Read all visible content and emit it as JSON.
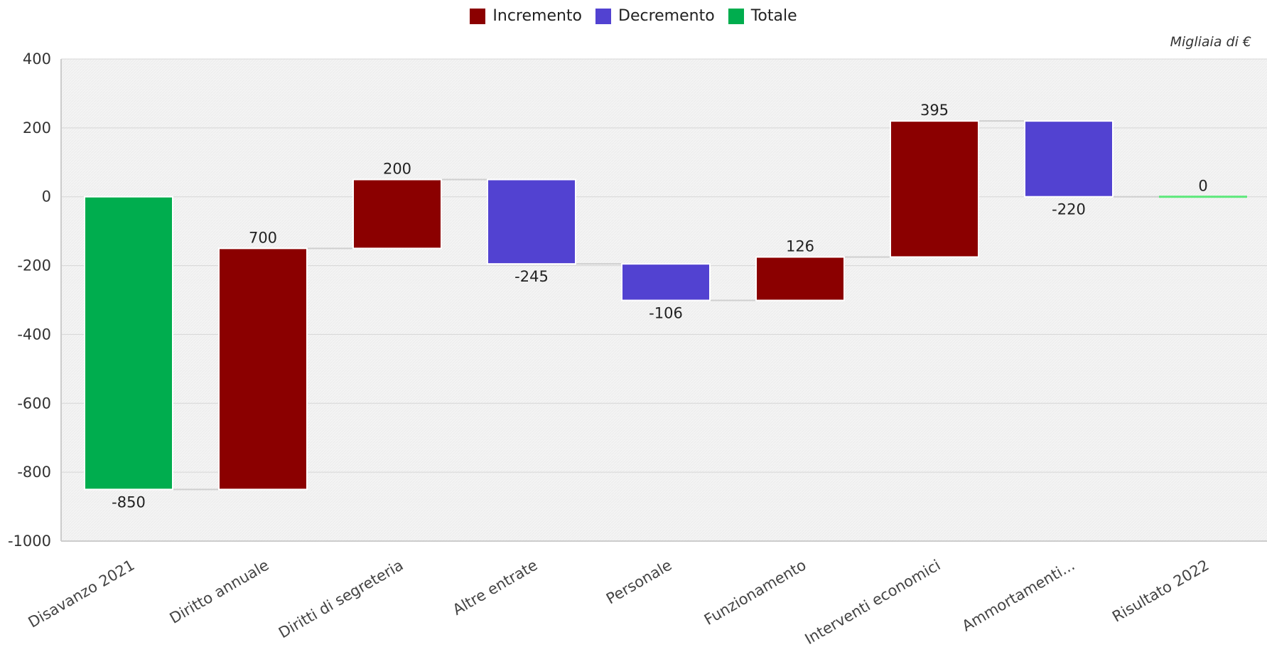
{
  "chart_data": {
    "type": "bar",
    "subtype": "waterfall",
    "title": "",
    "unit_label": "Migliaia di €",
    "legend": [
      {
        "name": "Incremento",
        "color": "#8b0000"
      },
      {
        "name": "Decremento",
        "color": "#5242d1"
      },
      {
        "name": "Totale",
        "color": "#00ad4e"
      }
    ],
    "legend_position": "top-center",
    "ylim": [
      -1000,
      400
    ],
    "yticks": [
      400,
      200,
      0,
      -200,
      -400,
      -600,
      -800,
      -1000
    ],
    "ytick_labels": [
      "400",
      "200",
      "0",
      "-200",
      "-400",
      "-600",
      "-800",
      "-1000"
    ],
    "grid": true,
    "categories": [
      "Disavanzo 2021",
      "Diritto annuale",
      "Diritti di segreteria",
      "Altre entrate",
      "Personale",
      "Funzionamento",
      "Interventi economici",
      "Ammortamenti...",
      "Risultato 2022"
    ],
    "bars": [
      {
        "category": "Disavanzo 2021",
        "kind": "total",
        "start": 0,
        "end": -850,
        "label": "-850"
      },
      {
        "category": "Diritto annuale",
        "kind": "increase",
        "start": -850,
        "end": -150,
        "label": "700"
      },
      {
        "category": "Diritti di segreteria",
        "kind": "increase",
        "start": -150,
        "end": 50,
        "label": "200"
      },
      {
        "category": "Altre entrate",
        "kind": "decrease",
        "start": 50,
        "end": -195,
        "label": "-245"
      },
      {
        "category": "Personale",
        "kind": "decrease",
        "start": -195,
        "end": -301,
        "label": "-106"
      },
      {
        "category": "Funzionamento",
        "kind": "increase",
        "start": -301,
        "end": -175,
        "label": "126"
      },
      {
        "category": "Interventi economici",
        "kind": "increase",
        "start": -175,
        "end": 220,
        "label": "395"
      },
      {
        "category": "Ammortamenti...",
        "kind": "decrease",
        "start": 220,
        "end": 0,
        "label": "-220"
      },
      {
        "category": "Risultato 2022",
        "kind": "total",
        "start": 0,
        "end": 0,
        "label": "0"
      }
    ],
    "colors": {
      "increase": "#8b0000",
      "decrease": "#5242d1",
      "total": "#00ad4e",
      "zero_total": "#5ce87a",
      "plot_bg": "#f3f3f3",
      "grid": "#d6d6d6",
      "connector": "#cfcfcf"
    }
  }
}
